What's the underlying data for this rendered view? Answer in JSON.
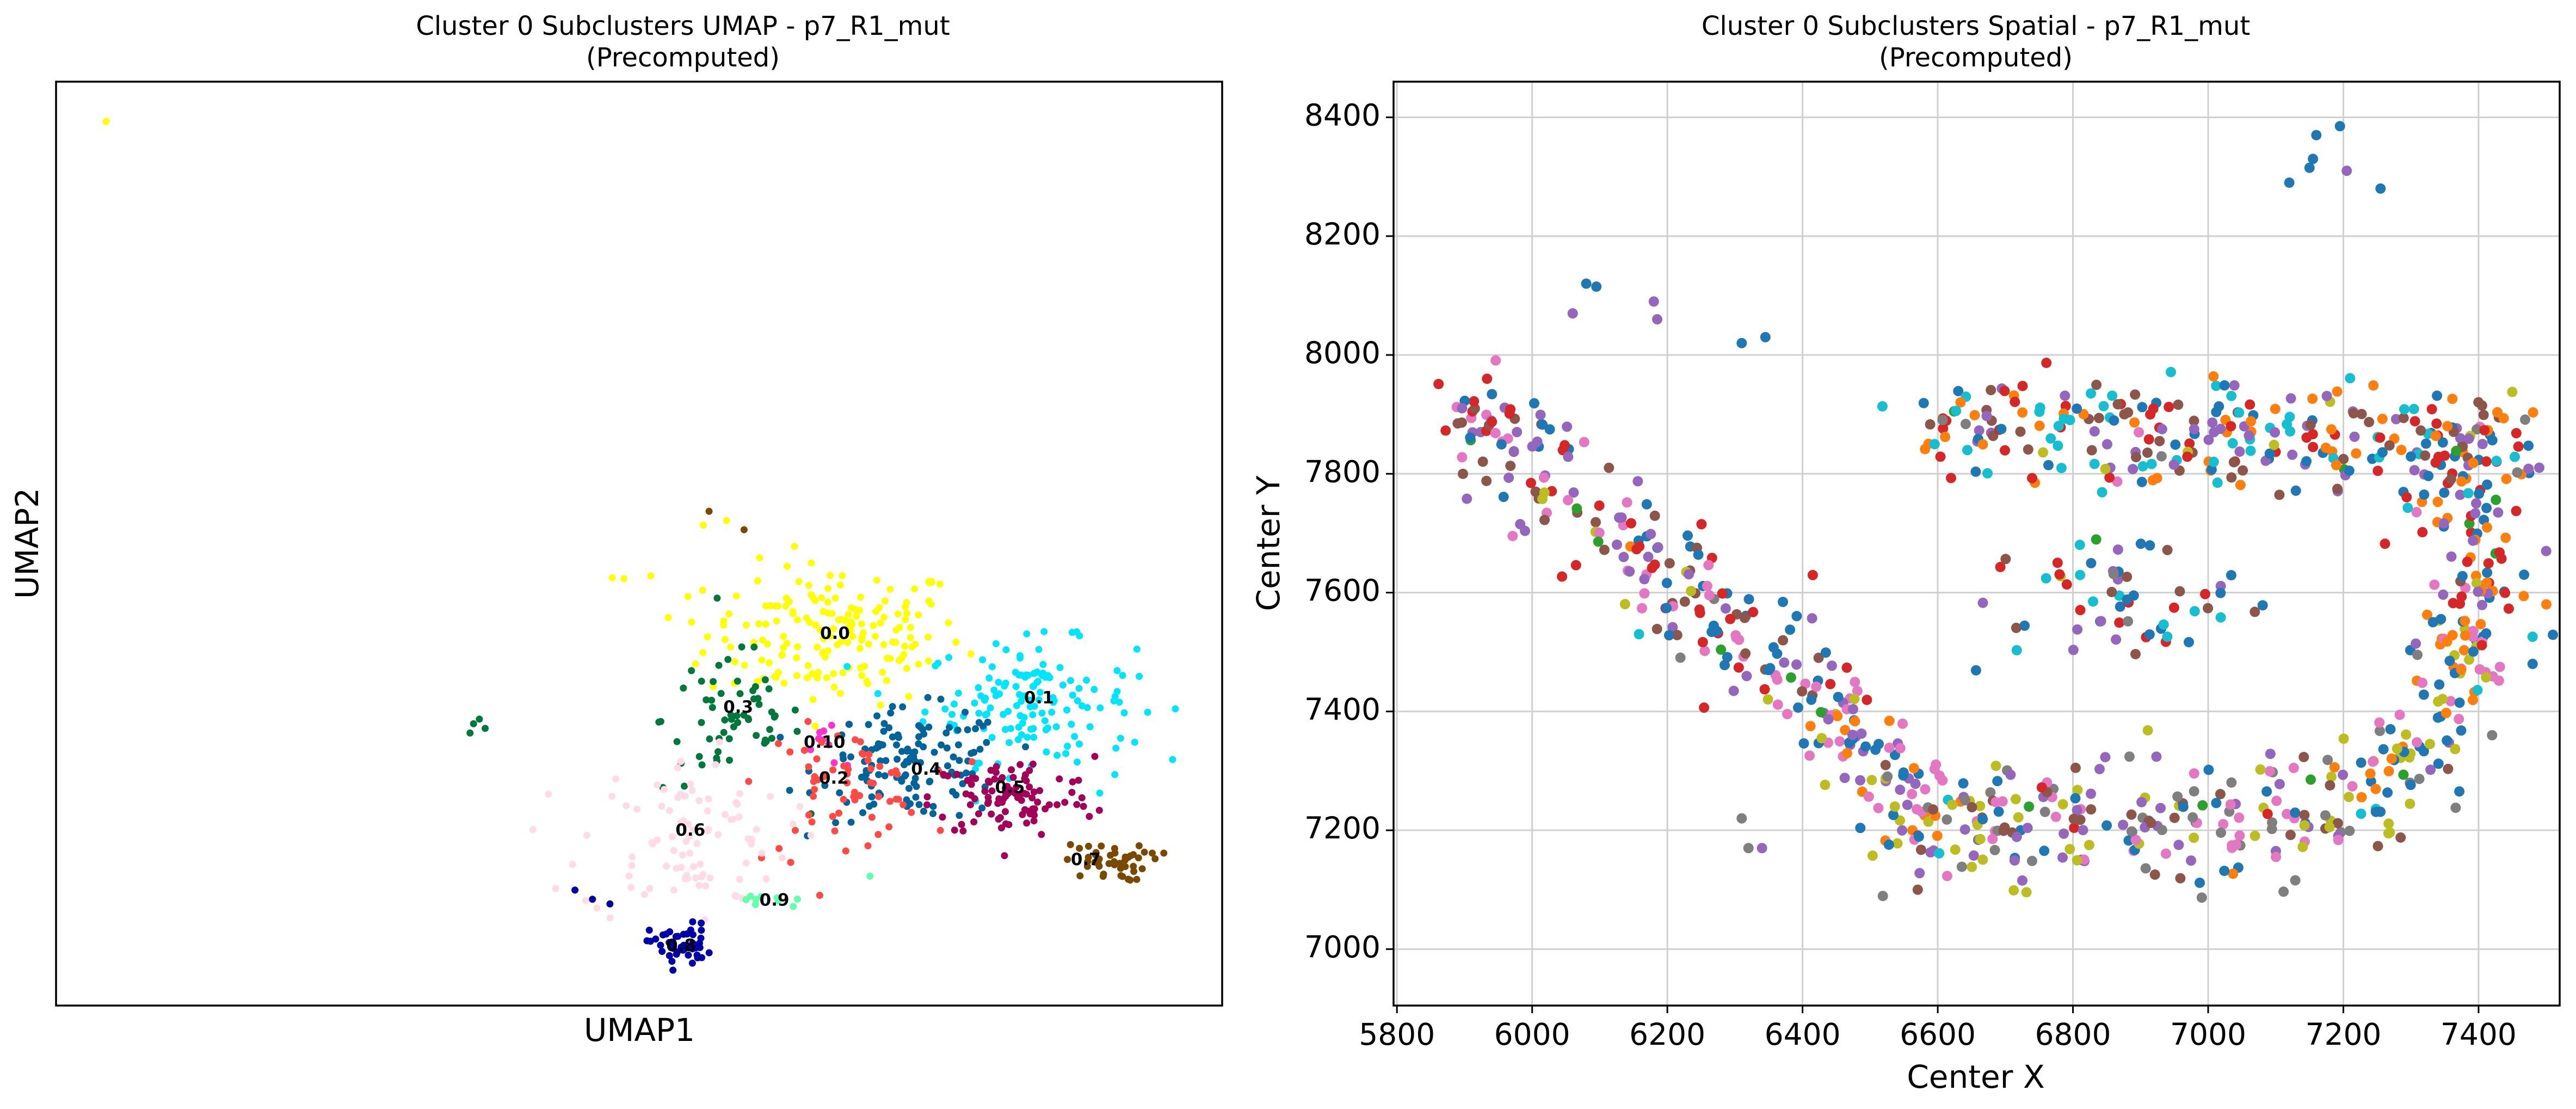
{
  "chart_data": [
    {
      "type": "scatter",
      "title": "Cluster 0 Subclusters UMAP - p7_R1_mut",
      "subtitle": "(Precomputed)",
      "xlabel": "UMAP1",
      "ylabel": "UMAP2",
      "xlim": [
        0,
        100
      ],
      "ylim": [
        0,
        100
      ],
      "axis_ticks": "hidden",
      "grid": false,
      "cluster_labels": [
        {
          "name": "0.0",
          "x": 66.8,
          "y": 40.2,
          "color": "#FFFF00"
        },
        {
          "name": "0.1",
          "x": 84.3,
          "y": 33.2,
          "color": "#00E5FF"
        },
        {
          "name": "0.3",
          "x": 58.5,
          "y": 32.2,
          "color": "#00783C"
        },
        {
          "name": "0.10",
          "x": 65.9,
          "y": 28.4,
          "color": "#FF33CC"
        },
        {
          "name": "0.4",
          "x": 74.6,
          "y": 25.5,
          "color": "#00639A"
        },
        {
          "name": "0.2",
          "x": 66.7,
          "y": 24.5,
          "color": "#FF4A46"
        },
        {
          "name": "0.5",
          "x": 81.8,
          "y": 23.5,
          "color": "#A30059"
        },
        {
          "name": "0.6",
          "x": 54.4,
          "y": 18.9,
          "color": "#FFDBE5"
        },
        {
          "name": "0.7",
          "x": 88.3,
          "y": 15.7,
          "color": "#7A4900"
        },
        {
          "name": "0.9",
          "x": 61.6,
          "y": 11.3,
          "color": "#63FFAC"
        },
        {
          "name": "0.8",
          "x": 53.6,
          "y": 6.4,
          "color": "#0000A6"
        }
      ],
      "series": [
        {
          "name": "0.0",
          "color": "#FFFF00",
          "center": [
            66.8,
            40.2
          ],
          "spread": [
            5.5,
            3.8
          ],
          "n": 170,
          "extra_points": [
            [
              4.3,
              95.7
            ],
            [
              47.7,
              46.3
            ],
            [
              48.7,
              46.2
            ],
            [
              51,
              46.5
            ],
            [
              52.5,
              42
            ],
            [
              54.5,
              41.5
            ],
            [
              57.5,
              52.5
            ],
            [
              55.5,
              52
            ]
          ]
        },
        {
          "name": "0.1",
          "color": "#00E5FF",
          "center": [
            83.5,
            33
          ],
          "spread": [
            4.5,
            3.2
          ],
          "n": 140,
          "extra_points": [
            [
              90.8,
              25
            ],
            [
              92.5,
              28.5
            ],
            [
              89.5,
              23
            ]
          ]
        },
        {
          "name": "0.3",
          "color": "#00783C",
          "center": [
            58,
            31
          ],
          "spread": [
            3,
            4
          ],
          "n": 60,
          "extra_points": [
            [
              35.5,
              29.5
            ],
            [
              35.8,
              30.5
            ],
            [
              36.3,
              31
            ],
            [
              36.8,
              30
            ]
          ]
        },
        {
          "name": "0.10",
          "color": "#FF33CC",
          "center": [
            66.5,
            28.5
          ],
          "spread": [
            1.5,
            1.5
          ],
          "n": 10
        },
        {
          "name": "0.4",
          "color": "#00639A",
          "center": [
            73.5,
            26
          ],
          "spread": [
            4,
            3
          ],
          "n": 130
        },
        {
          "name": "0.2",
          "color": "#FF4A46",
          "center": [
            67.5,
            24
          ],
          "spread": [
            3.5,
            3
          ],
          "n": 60,
          "extra_points": [
            [
              60.5,
              16
            ],
            [
              62,
              17
            ],
            [
              63,
              15.5
            ]
          ]
        },
        {
          "name": "0.5",
          "color": "#A30059",
          "center": [
            82,
            22.5
          ],
          "spread": [
            3.5,
            2.2
          ],
          "n": 100
        },
        {
          "name": "0.6",
          "color": "#FFDBE5",
          "center": [
            54,
            18
          ],
          "spread": [
            4.5,
            4.5
          ],
          "n": 90
        },
        {
          "name": "0.7",
          "color": "#7A4900",
          "center": [
            90,
            15.5
          ],
          "spread": [
            1.8,
            1
          ],
          "n": 45,
          "extra_points": [
            [
              95,
              16.5
            ],
            [
              56,
              53.5
            ],
            [
              59,
              51.5
            ]
          ]
        },
        {
          "name": "0.9",
          "color": "#63FFAC",
          "center": [
            61.5,
            11.5
          ],
          "spread": [
            1.2,
            0.6
          ],
          "n": 10,
          "extra_points": [
            [
              69.8,
              14
            ]
          ]
        },
        {
          "name": "0.8",
          "color": "#0000A6",
          "center": [
            53.5,
            6.5
          ],
          "spread": [
            1.3,
            1.2
          ],
          "n": 50,
          "extra_points": [
            [
              44.5,
              12.5
            ],
            [
              46,
              11.5
            ],
            [
              47.5,
              11
            ]
          ]
        }
      ]
    },
    {
      "type": "scatter",
      "title": "Cluster 0 Subclusters Spatial - p7_R1_mut",
      "subtitle": "(Precomputed)",
      "xlabel": "Center X",
      "ylabel": "Center Y",
      "xlim": [
        5795,
        7520
      ],
      "ylim": [
        6905,
        8460
      ],
      "xticks": [
        5800,
        6000,
        6200,
        6400,
        6600,
        6800,
        7000,
        7200,
        7400
      ],
      "yticks": [
        7000,
        7200,
        7400,
        7600,
        7800,
        8000,
        8200,
        8400
      ],
      "grid": true,
      "palette": [
        "#1f77b4",
        "#ff7f0e",
        "#2ca02c",
        "#d62728",
        "#9467bd",
        "#8c564b",
        "#e377c2",
        "#7f7f7f",
        "#bcbd22",
        "#17becf"
      ],
      "color_weights": [
        0.34,
        0.17,
        0.02,
        0.07,
        0.12,
        0.07,
        0.1,
        0.05,
        0.04,
        0.02
      ],
      "structure": [
        {
          "shape": "band",
          "from": [
            5880,
            7930
          ],
          "to": [
            6450,
            7400
          ],
          "n": 210,
          "jitter": 45,
          "colors": [
            0,
            6,
            4,
            5,
            3
          ]
        },
        {
          "shape": "band",
          "from": [
            6450,
            7400
          ],
          "to": [
            6600,
            7200
          ],
          "n": 80,
          "jitter": 35,
          "colors": [
            1,
            8,
            4,
            0,
            6
          ]
        },
        {
          "shape": "band",
          "from": [
            6600,
            7200
          ],
          "to": [
            7250,
            7230
          ],
          "n": 210,
          "jitter": 55,
          "colors": [
            4,
            6,
            0,
            8,
            5,
            7
          ]
        },
        {
          "shape": "band",
          "from": [
            7250,
            7230
          ],
          "to": [
            7400,
            7550
          ],
          "n": 90,
          "jitter": 35,
          "colors": [
            1,
            0,
            6,
            8
          ]
        },
        {
          "shape": "band",
          "from": [
            7400,
            7550
          ],
          "to": [
            7380,
            7850
          ],
          "n": 90,
          "jitter": 45,
          "colors": [
            1,
            0,
            4,
            3
          ]
        },
        {
          "shape": "band",
          "from": [
            6580,
            7880
          ],
          "to": [
            7460,
            7850
          ],
          "n": 280,
          "jitter": 45,
          "colors": [
            0,
            1,
            5,
            9,
            4,
            3
          ]
        },
        {
          "shape": "band",
          "from": [
            6700,
            7600
          ],
          "to": [
            7020,
            7600
          ],
          "n": 60,
          "jitter": 55,
          "colors": [
            0,
            4,
            5,
            9,
            3
          ]
        }
      ],
      "outliers": [
        {
          "x": 6080,
          "y": 8120,
          "c": 0
        },
        {
          "x": 6095,
          "y": 8115,
          "c": 0
        },
        {
          "x": 6060,
          "y": 8070,
          "c": 4
        },
        {
          "x": 6180,
          "y": 8090,
          "c": 4
        },
        {
          "x": 6185,
          "y": 8060,
          "c": 4
        },
        {
          "x": 6310,
          "y": 8020,
          "c": 0
        },
        {
          "x": 6345,
          "y": 8030,
          "c": 0
        },
        {
          "x": 7195,
          "y": 8385,
          "c": 0
        },
        {
          "x": 7160,
          "y": 8370,
          "c": 0
        },
        {
          "x": 7155,
          "y": 8330,
          "c": 0
        },
        {
          "x": 7150,
          "y": 8315,
          "c": 0
        },
        {
          "x": 7120,
          "y": 8290,
          "c": 0
        },
        {
          "x": 7205,
          "y": 8310,
          "c": 4
        },
        {
          "x": 7255,
          "y": 8280,
          "c": 0
        },
        {
          "x": 7420,
          "y": 7360,
          "c": 7
        },
        {
          "x": 7480,
          "y": 7480,
          "c": 0
        },
        {
          "x": 7500,
          "y": 7670,
          "c": 4
        },
        {
          "x": 6320,
          "y": 7170,
          "c": 7
        },
        {
          "x": 6310,
          "y": 7220,
          "c": 7
        },
        {
          "x": 6340,
          "y": 7170,
          "c": 4
        }
      ]
    }
  ]
}
